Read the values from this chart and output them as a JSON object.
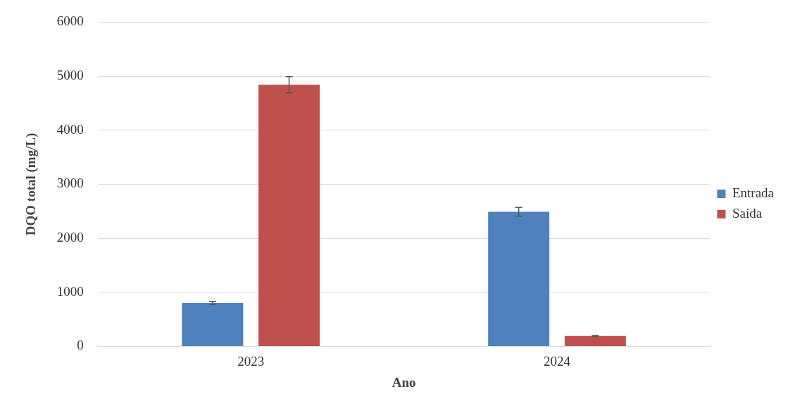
{
  "chart_data": {
    "type": "bar",
    "xlabel": "Ano",
    "ylabel": "DQO total (mg/L)",
    "categories": [
      "2023",
      "2024"
    ],
    "series": [
      {
        "name": "Entrada",
        "color": "#4f81bd",
        "values": [
          800,
          2490
        ],
        "errors": [
          30,
          80
        ]
      },
      {
        "name": "Saída",
        "color": "#c0504d",
        "values": [
          4840,
          190
        ],
        "errors": [
          150,
          10
        ]
      }
    ],
    "ylim": [
      0,
      6000
    ],
    "yticks": [
      0,
      1000,
      2000,
      3000,
      4000,
      5000,
      6000
    ],
    "grid": "y",
    "legend": "right"
  }
}
